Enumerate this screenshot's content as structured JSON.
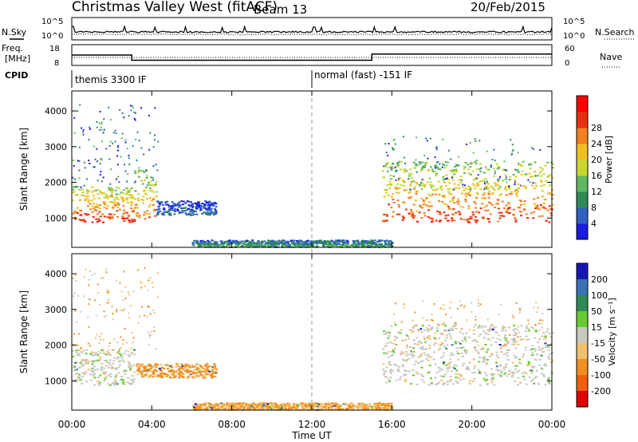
{
  "header": {
    "station": "Christmas Valley West (fitACF)",
    "beam": "Beam 13",
    "date": "20/Feb/2015"
  },
  "left_labels": {
    "nsky": "N.Sky",
    "freq": "Freq.",
    "freq_unit": "[MHz]",
    "cpid": "CPID"
  },
  "right_labels": {
    "nsearch": "N.Search",
    "nave": "Nave"
  },
  "noise_panel": {
    "left_ticks": [
      "10^5",
      "10^0"
    ],
    "right_ticks": [
      "10^5",
      "10^0"
    ]
  },
  "freq_panel": {
    "left_ticks": [
      "18",
      "8"
    ],
    "right_ticks": [
      "60",
      "0"
    ]
  },
  "cpid_labels": {
    "first": "themis 3300 IF",
    "second": "normal (fast) -151 IF"
  },
  "x_axis": {
    "label": "Time UT",
    "ticks": [
      "00:00",
      "04:00",
      "08:00",
      "12:00",
      "16:00",
      "20:00",
      "00:00"
    ]
  },
  "power_panel": {
    "ylabel": "Slant Range [km]",
    "yticks": [
      "1000",
      "2000",
      "3000",
      "4000"
    ],
    "cbar_label": "Power [dB]",
    "cbar_ticks": [
      "4",
      "8",
      "12",
      "16",
      "20",
      "24",
      "28"
    ]
  },
  "velocity_panel": {
    "ylabel": "Slant Range [km]",
    "yticks": [
      "1000",
      "2000",
      "3000",
      "4000"
    ],
    "cbar_label": "Velocity [m s⁻¹]",
    "cbar_ticks": [
      "200",
      "100",
      "50",
      "15",
      "-15",
      "-50",
      "-100",
      "-200"
    ]
  },
  "chart_data": {
    "type": "heatmap",
    "title": "Christmas Valley West (fitACF)",
    "x_range_hours": [
      0,
      24
    ],
    "y_range_km": [
      180,
      4560
    ],
    "frequency_steps": [
      {
        "start_h": 0,
        "end_h": 3.0,
        "freq_mhz": 13
      },
      {
        "start_h": 3.0,
        "end_h": 15.0,
        "freq_mhz": 10.5
      },
      {
        "start_h": 15.0,
        "end_h": 24,
        "freq_mhz": 13.5
      }
    ],
    "cpid_change_h": 12.0,
    "power_colors": [
      "#1a1ae0",
      "#3060c0",
      "#2e8b57",
      "#5fb85f",
      "#c8d632",
      "#f0c020",
      "#f08020",
      "#e83010",
      "#ff0000"
    ],
    "velocity_colors": [
      "#1818b0",
      "#3a72b8",
      "#2e8b57",
      "#66cc33",
      "#c8c8c0",
      "#f0c070",
      "#f09020",
      "#f06010",
      "#e00000"
    ],
    "power_features": [
      {
        "name": "morning band",
        "t0": 0.0,
        "t1": 3.1,
        "r0_km": 900,
        "r1_km": 1900,
        "level_db": 26
      },
      {
        "name": "after-step band",
        "t0": 3.1,
        "t1": 4.2,
        "r0_km": 1000,
        "r1_km": 2400,
        "level_db": 22
      },
      {
        "name": "blue patch",
        "t0": 4.2,
        "t1": 7.2,
        "r0_km": 1100,
        "r1_km": 1500,
        "level_db": 6
      },
      {
        "name": "near-range echoes",
        "t0": 6.0,
        "t1": 16.0,
        "r0_km": 200,
        "r1_km": 400,
        "level_db": 10
      },
      {
        "name": "afternoon band",
        "t0": 15.5,
        "t1": 24.0,
        "r0_km": 900,
        "r1_km": 2600,
        "level_db": 24
      }
    ],
    "velocity_features": [
      {
        "name": "morning band",
        "t0": 0.0,
        "t1": 3.1,
        "r0_km": 900,
        "r1_km": 1900,
        "v_ms": 0
      },
      {
        "name": "patch",
        "t0": 3.2,
        "t1": 7.2,
        "r0_km": 1100,
        "r1_km": 1500,
        "v_ms": -60
      },
      {
        "name": "near-range echoes",
        "t0": 6.0,
        "t1": 16.0,
        "r0_km": 200,
        "r1_km": 400,
        "v_ms": -50
      },
      {
        "name": "afternoon band",
        "t0": 15.5,
        "t1": 24.0,
        "r0_km": 900,
        "r1_km": 2600,
        "v_ms": 0
      }
    ]
  }
}
